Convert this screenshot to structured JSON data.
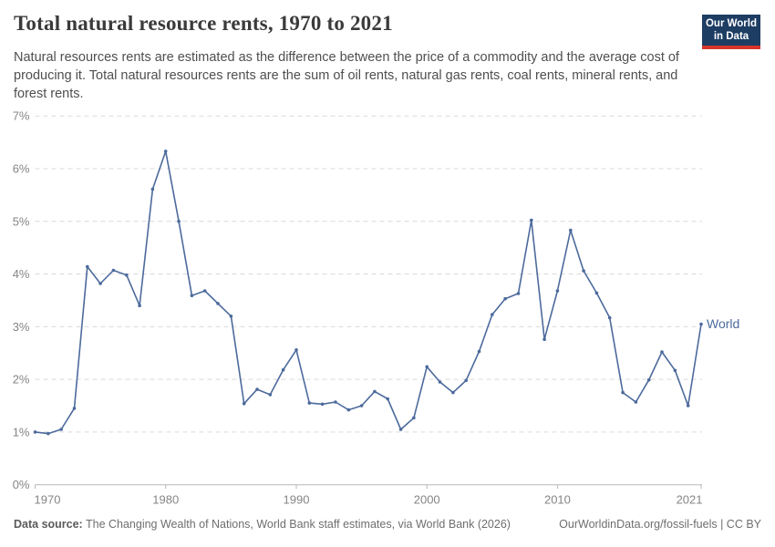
{
  "header": {
    "title": "Total natural resource rents, 1970 to 2021",
    "subtitle": "Natural resources rents are estimated as the difference between the price of a commodity and the average cost of producing it. Total natural resources rents are the sum of oil rents, natural gas rents, coal rents, mineral rents, and forest rents.",
    "logo": {
      "line1": "Our World",
      "line2": "in Data",
      "bg_color": "#1d3d63",
      "accent_color": "#d8352a"
    }
  },
  "chart_data": {
    "type": "line",
    "title": "Total natural resource rents, 1970 to 2021",
    "xlabel": "",
    "ylabel": "",
    "xlim": [
      1970,
      2021
    ],
    "ylim": [
      0,
      7
    ],
    "grid": "horizontal-dashed",
    "legend_position": "right-of-last-point",
    "x_ticks": [
      {
        "v": 1970,
        "label": "1970"
      },
      {
        "v": 1980,
        "label": "1980"
      },
      {
        "v": 1990,
        "label": "1990"
      },
      {
        "v": 2000,
        "label": "2000"
      },
      {
        "v": 2010,
        "label": "2010"
      },
      {
        "v": 2021,
        "label": "2021"
      }
    ],
    "y_ticks": [
      {
        "v": 0,
        "label": "0%"
      },
      {
        "v": 1,
        "label": "1%"
      },
      {
        "v": 2,
        "label": "2%"
      },
      {
        "v": 3,
        "label": "3%"
      },
      {
        "v": 4,
        "label": "4%"
      },
      {
        "v": 5,
        "label": "5%"
      },
      {
        "v": 6,
        "label": "6%"
      },
      {
        "v": 7,
        "label": "7%"
      }
    ],
    "series": [
      {
        "name": "World",
        "color": "#4c6a9c",
        "x": [
          1970,
          1971,
          1972,
          1973,
          1974,
          1975,
          1976,
          1977,
          1978,
          1979,
          1980,
          1981,
          1982,
          1983,
          1984,
          1985,
          1986,
          1987,
          1988,
          1989,
          1990,
          1991,
          1992,
          1993,
          1994,
          1995,
          1996,
          1997,
          1998,
          1999,
          2000,
          2001,
          2002,
          2003,
          2004,
          2005,
          2006,
          2007,
          2008,
          2009,
          2010,
          2011,
          2012,
          2013,
          2014,
          2015,
          2016,
          2017,
          2018,
          2019,
          2020,
          2021
        ],
        "y": [
          1.0,
          0.97,
          1.05,
          1.45,
          4.14,
          3.82,
          4.07,
          3.98,
          3.4,
          5.61,
          6.33,
          5.0,
          3.59,
          3.68,
          3.44,
          3.2,
          1.54,
          1.81,
          1.71,
          2.18,
          2.56,
          1.55,
          1.53,
          1.57,
          1.42,
          1.5,
          1.77,
          1.63,
          1.05,
          1.27,
          2.24,
          1.95,
          1.75,
          1.98,
          2.53,
          3.23,
          3.53,
          3.63,
          5.02,
          2.76,
          3.68,
          4.83,
          4.06,
          3.64,
          3.17,
          1.75,
          1.57,
          1.99,
          2.52,
          2.17,
          1.5,
          3.05
        ]
      }
    ],
    "axis_color": "#b8b8b8",
    "gridline_color": "#dadada",
    "tick_label_color": "#858585"
  },
  "footer": {
    "datasource_label": "Data source:",
    "datasource_text": " The Changing Wealth of Nations, World Bank staff estimates, via World Bank (2026)",
    "link": "OurWorldinData.org/fossil-fuels | CC BY"
  }
}
